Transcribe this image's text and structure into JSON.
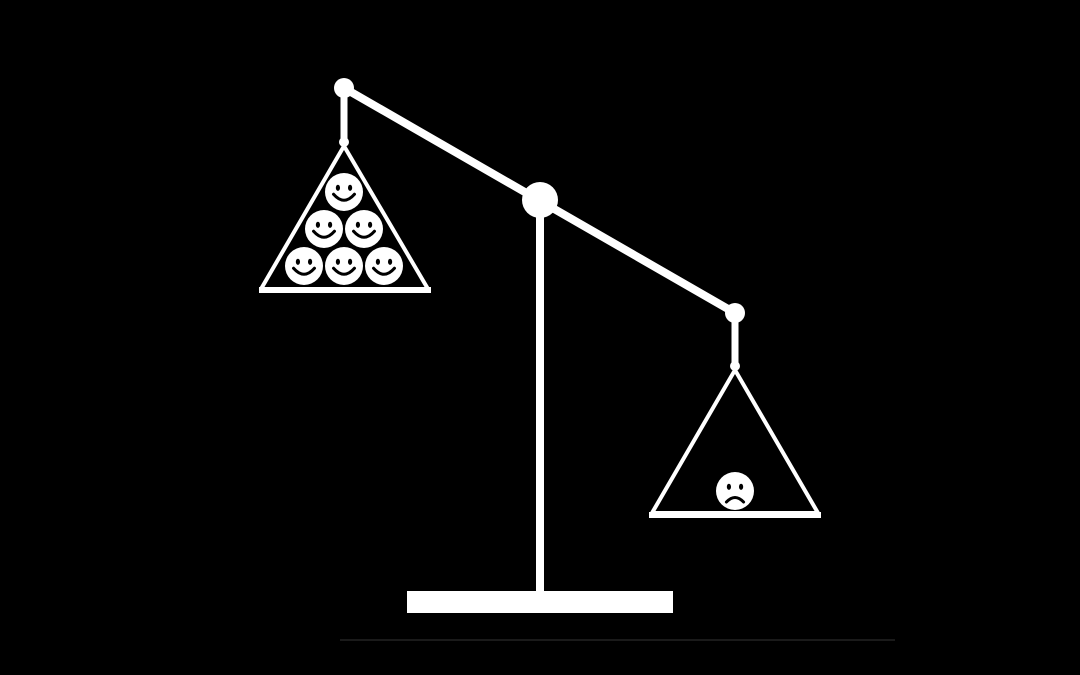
{
  "illustration": {
    "background_color": "#000000",
    "foreground_color": "#ffffff",
    "left_pan": {
      "face_icon": "smiling-face-icon",
      "face_count": 6
    },
    "right_pan": {
      "face_icon": "frowning-face-icon",
      "face_count": 1
    }
  }
}
